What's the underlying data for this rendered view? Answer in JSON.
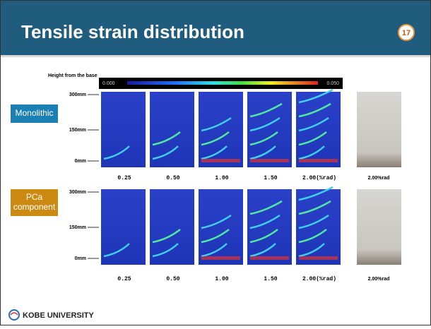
{
  "header": {
    "title": "Tensile strain distribution",
    "page_number": "17"
  },
  "figure": {
    "axis_title": "Height from the base",
    "colorbar": {
      "min_label": "0.000",
      "max_label": "0.050"
    },
    "rows": [
      {
        "label": "Monolithic",
        "heights": [
          "300mm",
          "150mm",
          "0mm"
        ],
        "drifts": [
          "0.25",
          "0.50",
          "1.00",
          "1.50",
          "2.00(%rad)"
        ],
        "photo_label": "2.00%rad"
      },
      {
        "label": "PCa component",
        "heights": [
          "300mm",
          "150mm",
          "0mm"
        ],
        "drifts": [
          "0.25",
          "0.50",
          "1.00",
          "1.50",
          "2.00(%rad)"
        ],
        "photo_label": "2.00%rad"
      }
    ]
  },
  "footer": {
    "institution": "KOBE UNIVERSITY"
  }
}
